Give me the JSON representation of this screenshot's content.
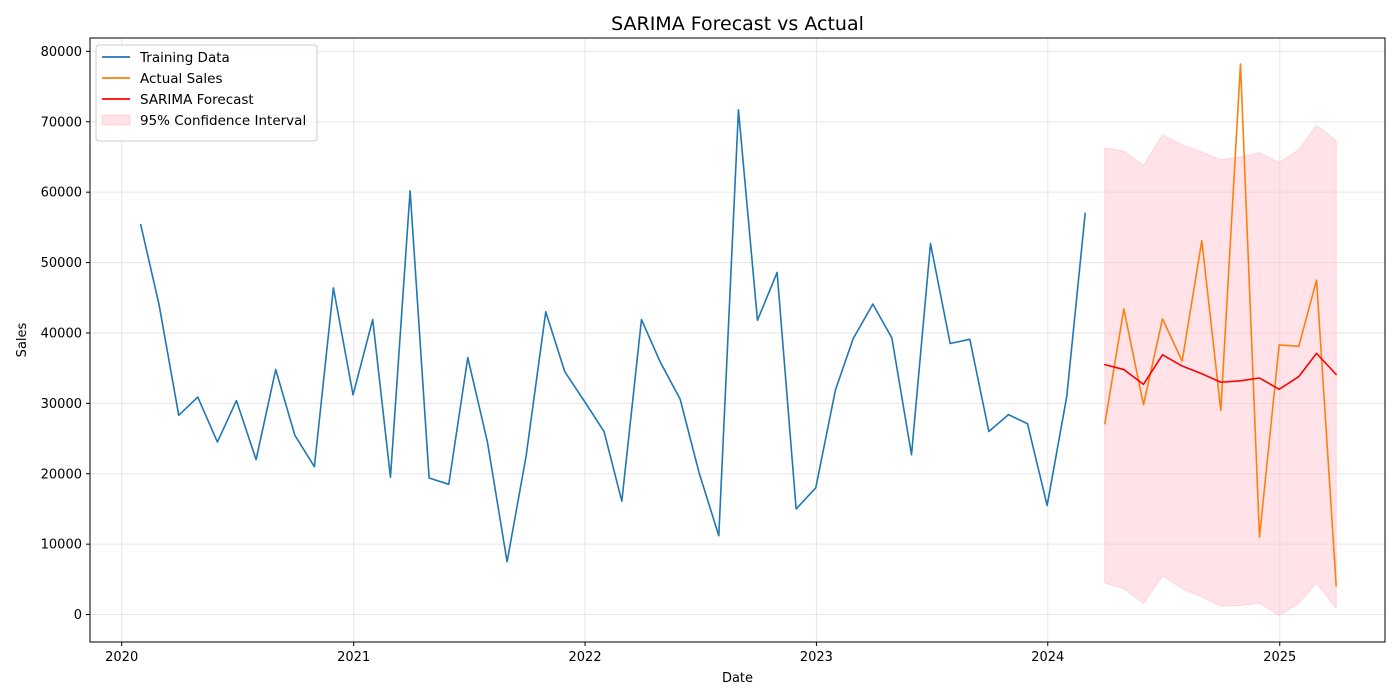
{
  "chart_data": {
    "type": "line",
    "title": "SARIMA Forecast vs Actual",
    "xlabel": "Date",
    "ylabel": "Sales",
    "xlim": [
      "2019-11-12",
      "2025-06-16"
    ],
    "ylim": [
      -3900,
      81900
    ],
    "x_ticks": [
      {
        "date": "2020-01-01",
        "label": "2020"
      },
      {
        "date": "2021-01-01",
        "label": "2021"
      },
      {
        "date": "2022-01-01",
        "label": "2022"
      },
      {
        "date": "2023-01-01",
        "label": "2023"
      },
      {
        "date": "2024-01-01",
        "label": "2024"
      },
      {
        "date": "2025-01-01",
        "label": "2025"
      }
    ],
    "y_ticks": [
      0,
      10000,
      20000,
      30000,
      40000,
      50000,
      60000,
      70000,
      80000
    ],
    "grid": true,
    "legend_position": "top-left",
    "series": [
      {
        "name": "Training Data",
        "kind": "line",
        "color": "#1f77b4",
        "x": [
          "2020-01-31",
          "2020-02-29",
          "2020-03-31",
          "2020-04-30",
          "2020-05-31",
          "2020-06-30",
          "2020-07-31",
          "2020-08-31",
          "2020-09-30",
          "2020-10-31",
          "2020-11-30",
          "2020-12-31",
          "2021-01-31",
          "2021-02-28",
          "2021-03-31",
          "2021-04-30",
          "2021-05-31",
          "2021-06-30",
          "2021-07-31",
          "2021-08-31",
          "2021-09-30",
          "2021-10-31",
          "2021-11-30",
          "2021-12-31",
          "2022-01-31",
          "2022-02-28",
          "2022-03-31",
          "2022-04-30",
          "2022-05-31",
          "2022-06-30",
          "2022-07-31",
          "2022-08-31",
          "2022-09-30",
          "2022-10-31",
          "2022-11-30",
          "2022-12-31",
          "2023-01-31",
          "2023-02-28",
          "2023-03-31",
          "2023-04-30",
          "2023-05-31",
          "2023-06-30",
          "2023-07-31",
          "2023-08-31",
          "2023-09-30",
          "2023-10-31",
          "2023-11-30",
          "2023-12-31",
          "2024-01-31",
          "2024-02-29"
        ],
        "values": [
          55400,
          44000,
          28300,
          30900,
          24500,
          30400,
          22000,
          34800,
          25500,
          21000,
          46400,
          31200,
          41900,
          19500,
          60200,
          19400,
          18500,
          36500,
          24500,
          7500,
          22500,
          43000,
          34500,
          30300,
          26000,
          16100,
          41900,
          35800,
          30600,
          20100,
          11200,
          71700,
          41800,
          48600,
          15000,
          18000,
          31900,
          39200,
          44100,
          39300,
          22700,
          52700,
          38500,
          39100,
          26000,
          28400,
          27100,
          15500,
          31000,
          57000
        ]
      },
      {
        "name": "Actual Sales",
        "kind": "line",
        "color": "#ff7f0e",
        "x": [
          "2024-03-31",
          "2024-04-30",
          "2024-05-31",
          "2024-06-30",
          "2024-07-31",
          "2024-08-31",
          "2024-09-30",
          "2024-10-31",
          "2024-11-30",
          "2024-12-31",
          "2025-01-31",
          "2025-02-28",
          "2025-03-31"
        ],
        "values": [
          27100,
          43400,
          29800,
          42000,
          36000,
          53100,
          29000,
          78200,
          11000,
          38300,
          38100,
          47500,
          4100
        ]
      },
      {
        "name": "SARIMA Forecast",
        "kind": "line",
        "color": "#ff0000",
        "x": [
          "2024-03-31",
          "2024-04-30",
          "2024-05-31",
          "2024-06-30",
          "2024-07-31",
          "2024-08-31",
          "2024-09-30",
          "2024-10-31",
          "2024-11-30",
          "2024-12-31",
          "2025-01-31",
          "2025-02-28",
          "2025-03-31"
        ],
        "values": [
          35500,
          34800,
          32700,
          36900,
          35300,
          34200,
          33000,
          33200,
          33600,
          32000,
          33800,
          37100,
          34100
        ]
      },
      {
        "name": "95% Confidence Interval",
        "kind": "band",
        "color": "#ffc0cb",
        "x": [
          "2024-03-31",
          "2024-04-30",
          "2024-05-31",
          "2024-06-30",
          "2024-07-31",
          "2024-08-31",
          "2024-09-30",
          "2024-10-31",
          "2024-11-30",
          "2024-12-31",
          "2025-01-31",
          "2025-02-28",
          "2025-03-31"
        ],
        "lower": [
          4500,
          3700,
          1600,
          5500,
          3700,
          2500,
          1200,
          1300,
          1600,
          -100,
          1600,
          4500,
          900
        ],
        "upper": [
          66300,
          65800,
          63800,
          68100,
          66700,
          65700,
          64600,
          65000,
          65600,
          64200,
          66000,
          69500,
          67300
        ]
      }
    ]
  }
}
